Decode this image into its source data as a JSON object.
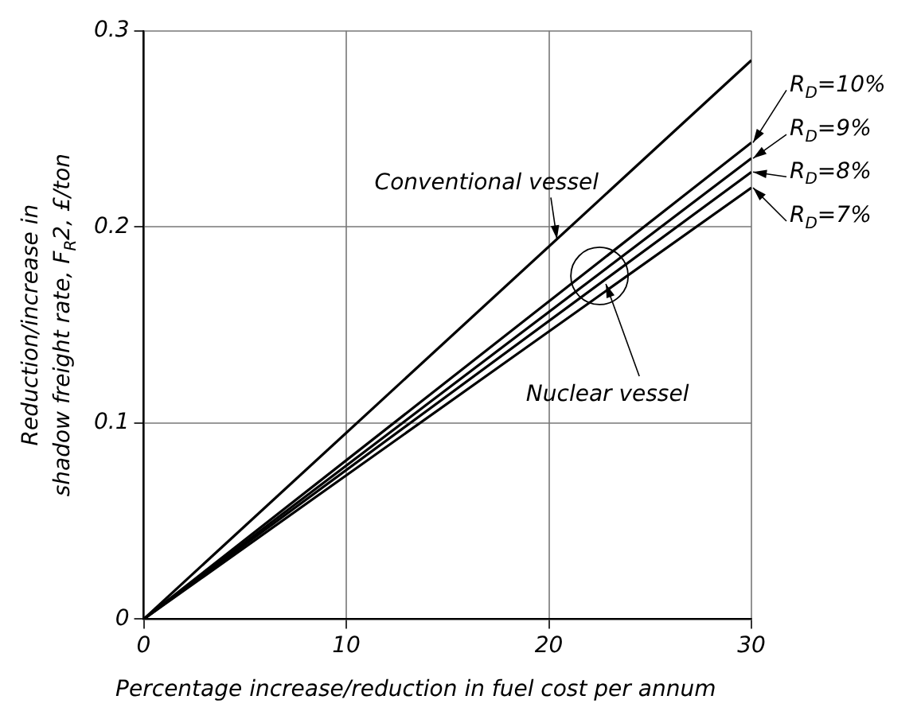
{
  "chart_data": {
    "type": "line",
    "xlabel": "Percentage increase/reduction in fuel cost per annum",
    "ylabel": "Reduction/increase in\nshadow freight rate, F$_{R}$2, £/ton",
    "x": [
      0,
      30
    ],
    "series": [
      {
        "name": "Conventional vessel",
        "color": "#000000",
        "values": [
          0,
          0.285
        ]
      },
      {
        "name": "R$_{D}$=10%",
        "color": "#000000",
        "values": [
          0,
          0.243
        ]
      },
      {
        "name": "R$_{D}$=9%",
        "color": "#000000",
        "values": [
          0,
          0.235
        ]
      },
      {
        "name": "R$_{D}$=8%",
        "color": "#000000",
        "values": [
          0,
          0.228
        ]
      },
      {
        "name": "R$_{D}$=7%",
        "color": "#000000",
        "values": [
          0,
          0.22
        ]
      }
    ],
    "annotations": [
      {
        "text": "Nuclear vessel",
        "x": 22.5,
        "y": 0.175
      }
    ],
    "xlim": [
      0,
      30
    ],
    "xticks": [
      0,
      10,
      20,
      30
    ],
    "ylim": [
      0,
      0.3
    ],
    "yticks": [
      0,
      0.1,
      0.2,
      0.3
    ],
    "grid": true,
    "legend": "right",
    "marker": "none",
    "line_style": "solid"
  }
}
